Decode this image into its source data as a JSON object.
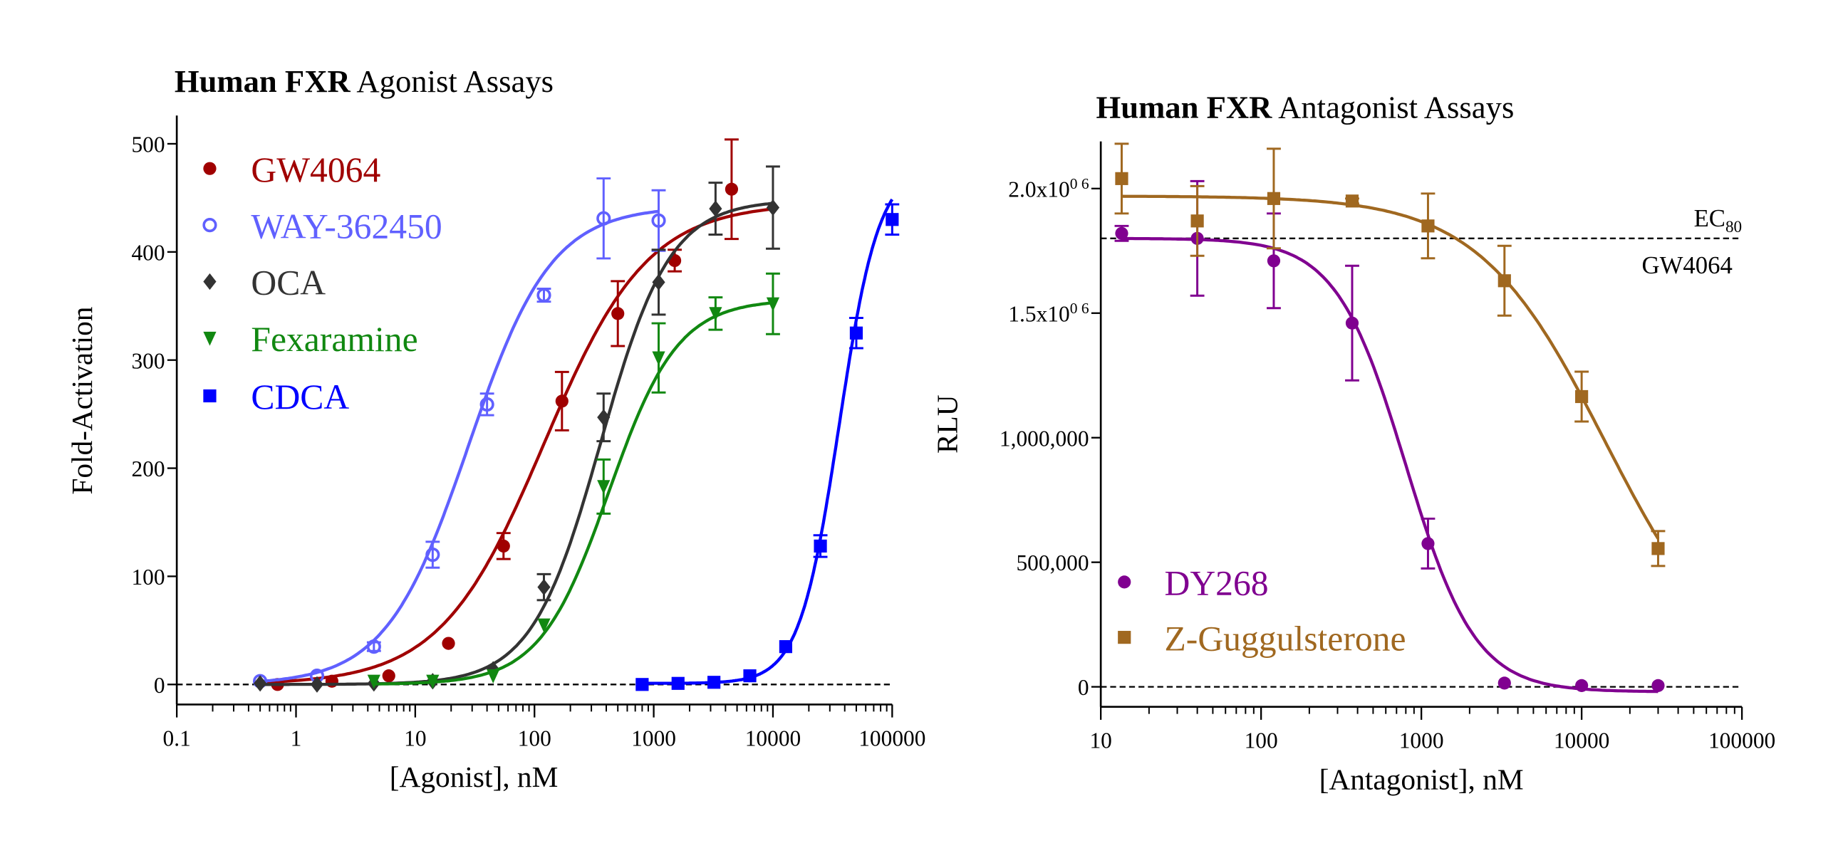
{
  "chart_data": [
    {
      "type": "scatter",
      "title_bold": "Human FXR",
      "title_rest": " Agonist Assays",
      "xlabel": "[Agonist], nM",
      "ylabel": "Fold-Activation",
      "xscale": "log",
      "xlim": [
        0.1,
        100000
      ],
      "ylim": [
        0,
        500
      ],
      "x_ticks": [
        "0.1",
        "1",
        "10",
        "100",
        "1000",
        "10000",
        "100000"
      ],
      "y_ticks": [
        "0",
        "100",
        "200",
        "300",
        "400",
        "500"
      ],
      "y_tick_values": [
        0,
        100,
        200,
        300,
        400,
        500
      ],
      "x_tick_values": [
        0.1,
        1,
        10,
        100,
        1000,
        10000,
        100000
      ],
      "baseline": {
        "y": 0,
        "style": "dashed"
      },
      "legend_position": "top-left",
      "series": [
        {
          "name": "GW4064",
          "color": "#a00000",
          "marker": "circle-filled",
          "x": [
            0.7,
            2,
            6,
            19,
            55,
            170,
            500,
            1500,
            4500
          ],
          "y": [
            0,
            3,
            8,
            38,
            128,
            262,
            343,
            392,
            458
          ],
          "err": [
            0,
            0,
            0,
            0,
            12,
            27,
            30,
            10,
            46
          ],
          "fit": {
            "bottom": 0,
            "top": 445,
            "ec50": 120,
            "hill": 1.0,
            "xmin": 0.5,
            "xmax": 10000
          }
        },
        {
          "name": "WAY-362450",
          "color": "#6060ff",
          "marker": "circle-open",
          "x": [
            0.5,
            1.5,
            4.5,
            14,
            40,
            120,
            380,
            1100
          ],
          "y": [
            3,
            8,
            35,
            120,
            259,
            360,
            431,
            429
          ],
          "err": [
            0,
            0,
            4,
            12,
            10,
            6,
            37,
            28
          ],
          "fit": {
            "bottom": 0,
            "top": 442,
            "ec50": 28,
            "hill": 1.25,
            "xmin": 0.5,
            "xmax": 1100
          }
        },
        {
          "name": "OCA",
          "color": "#333333",
          "marker": "diamond",
          "x": [
            0.5,
            1.5,
            4.5,
            14,
            45,
            120,
            380,
            1100,
            3300,
            10000
          ],
          "y": [
            1,
            0,
            1,
            3,
            14,
            90,
            247,
            372,
            440,
            441
          ],
          "err": [
            0,
            0,
            0,
            0,
            0,
            12,
            22,
            30,
            24,
            38
          ],
          "fit": {
            "bottom": 0,
            "top": 448,
            "ec50": 360,
            "hill": 1.5,
            "xmin": 0.5,
            "xmax": 10000
          }
        },
        {
          "name": "Fexaramine",
          "color": "#118811",
          "marker": "triangle-down",
          "x": [
            4.5,
            14,
            45,
            120,
            380,
            1100,
            3300,
            10000
          ],
          "y": [
            3,
            3,
            8,
            55,
            183,
            302,
            343,
            352
          ],
          "err": [
            0,
            0,
            0,
            0,
            25,
            32,
            15,
            28
          ],
          "fit": {
            "bottom": 0,
            "top": 356,
            "ec50": 420,
            "hill": 1.5,
            "xmin": 4.5,
            "xmax": 10000
          }
        },
        {
          "name": "CDCA",
          "color": "#0000ff",
          "marker": "square",
          "x": [
            800,
            1600,
            3200,
            6400,
            12800,
            25000,
            50000,
            100000
          ],
          "y": [
            0,
            1,
            2,
            8,
            35,
            128,
            325,
            430
          ],
          "err": [
            0,
            0,
            0,
            0,
            0,
            10,
            14,
            14
          ],
          "fit": {
            "bottom": 1,
            "top": 480,
            "ec50": 36000,
            "hill": 2.6,
            "xmin": 800,
            "xmax": 100000
          }
        }
      ]
    },
    {
      "type": "scatter",
      "title_bold": "Human FXR",
      "title_rest": " Antagonist Assays",
      "xlabel": "[Antagonist], nM",
      "ylabel": "RLU",
      "xscale": "log",
      "xlim": [
        10,
        100000
      ],
      "ylim": [
        0,
        2200000
      ],
      "x_ticks": [
        "10",
        "100",
        "1000",
        "10000",
        "100000"
      ],
      "x_tick_values": [
        10,
        100,
        1000,
        10000,
        100000
      ],
      "y_ticks": [
        "0",
        "500,000",
        "1,000,000",
        "1.5x10",
        "2.0x10"
      ],
      "y_tick_sup": [
        "",
        "",
        "",
        "0 6",
        "0 6"
      ],
      "y_tick_values": [
        0,
        500000,
        1000000,
        1500000,
        2000000
      ],
      "baseline": {
        "y": 0,
        "style": "dashed"
      },
      "reference_line": {
        "y": 1800000,
        "style": "dashed",
        "label_top": "EC",
        "label_top_sub": "80",
        "label_bottom": "GW4064"
      },
      "legend_position": "bottom-left",
      "series": [
        {
          "name": "DY268",
          "color": "#800090",
          "marker": "circle-filled",
          "x": [
            13.5,
            40,
            120,
            370,
            1100,
            3300,
            10000,
            30000
          ],
          "y": [
            1820000,
            1800000,
            1710000,
            1460000,
            575000,
            15000,
            5000,
            5000
          ],
          "err": [
            30000,
            230000,
            190000,
            230000,
            100000,
            0,
            0,
            0
          ],
          "fit": {
            "bottom": -20000,
            "top": 1800000,
            "ec50": 800,
            "hill": 2.0,
            "xmin": 13.5,
            "xmax": 30000
          }
        },
        {
          "name": "Z-Guggulsterone",
          "color": "#a06820",
          "marker": "square",
          "x": [
            13.5,
            40,
            120,
            370,
            1100,
            3300,
            10000,
            30000
          ],
          "y": [
            2040000,
            1870000,
            1960000,
            1950000,
            1850000,
            1630000,
            1165000,
            555000
          ],
          "err": [
            140000,
            140000,
            200000,
            10000,
            130000,
            140000,
            100000,
            70000
          ],
          "fit": {
            "bottom": 0,
            "top": 1970000,
            "ec50": 14000,
            "hill": 1.1,
            "xmin": 13.5,
            "xmax": 30000
          }
        }
      ]
    }
  ]
}
